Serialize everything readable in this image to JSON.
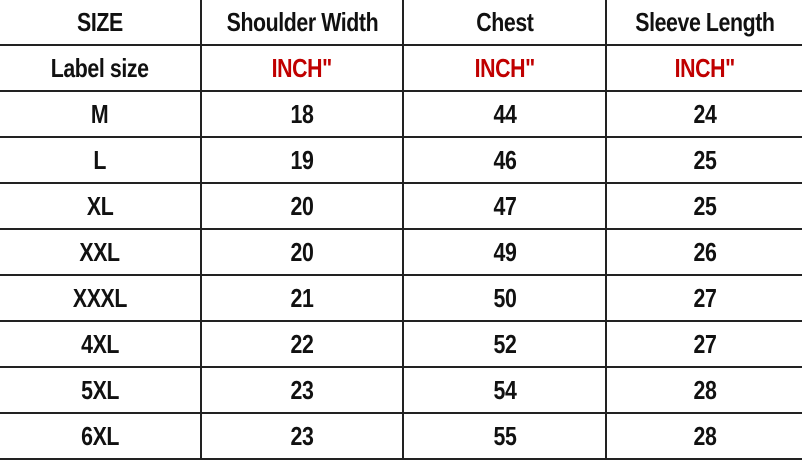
{
  "table": {
    "header": [
      "SIZE",
      "Shoulder Width",
      "Chest",
      "Sleeve Length"
    ],
    "units": [
      "Label size",
      "INCH\"",
      "INCH\"",
      "INCH\""
    ],
    "rows": [
      [
        "M",
        18,
        44,
        24
      ],
      [
        "L",
        19,
        46,
        25
      ],
      [
        "XL",
        20,
        47,
        25
      ],
      [
        "XXL",
        20,
        49,
        26
      ],
      [
        "XXXL",
        21,
        50,
        27
      ],
      [
        "4XL",
        22,
        52,
        27
      ],
      [
        "5XL",
        23,
        54,
        28
      ],
      [
        "6XL",
        23,
        55,
        28
      ]
    ]
  }
}
